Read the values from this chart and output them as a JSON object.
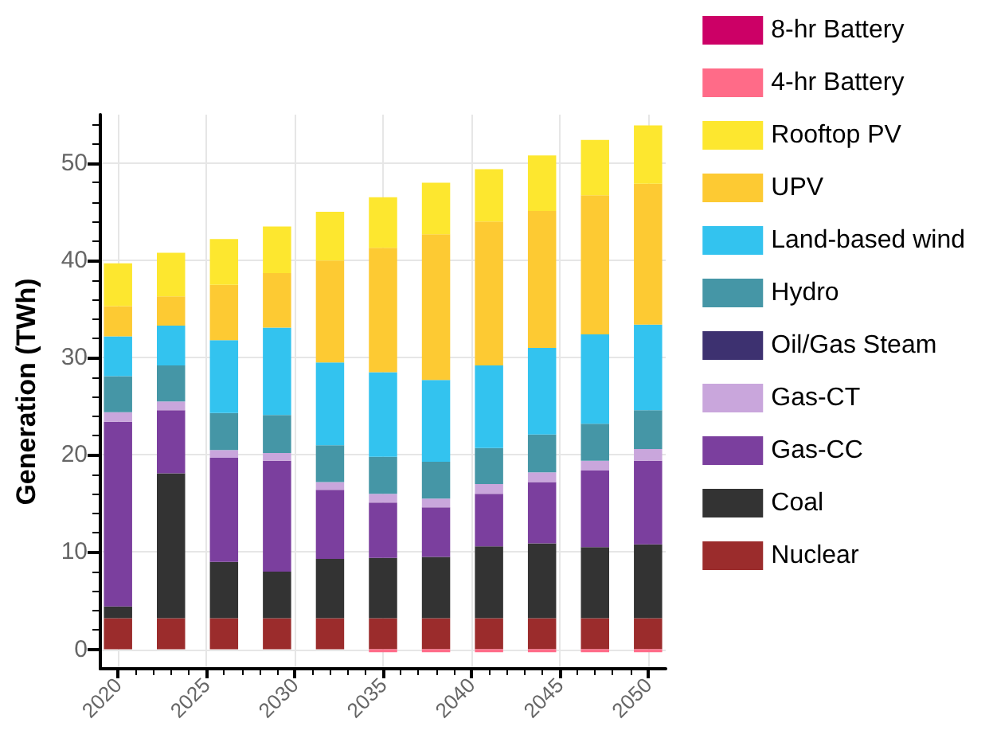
{
  "chart_data": {
    "type": "bar",
    "stacked": true,
    "ylabel": "Generation (TWh)",
    "x": [
      2020,
      2023,
      2026,
      2029,
      2032,
      2035,
      2038,
      2041,
      2044,
      2047,
      2050
    ],
    "xlim": [
      2019,
      2051
    ],
    "xticks": [
      2020,
      2025,
      2030,
      2035,
      2040,
      2045,
      2050
    ],
    "ylim": [
      -2,
      55
    ],
    "yticks": [
      0,
      10,
      20,
      30,
      40,
      50
    ],
    "grid": true,
    "legend": "right",
    "series": [
      {
        "name": "Nuclear",
        "color": "#9b2c2c",
        "values": [
          3.2,
          3.2,
          3.2,
          3.2,
          3.2,
          3.2,
          3.2,
          3.2,
          3.2,
          3.2,
          3.2
        ]
      },
      {
        "name": "Coal",
        "color": "#333333",
        "values": [
          1.2,
          14.9,
          5.8,
          4.8,
          6.1,
          6.2,
          6.3,
          7.4,
          7.7,
          7.3,
          7.6
        ]
      },
      {
        "name": "Gas-CC",
        "color": "#7b3f9e",
        "values": [
          19.0,
          6.5,
          10.7,
          11.4,
          7.1,
          5.7,
          5.1,
          5.4,
          6.3,
          7.9,
          8.6
        ]
      },
      {
        "name": "Gas-CT",
        "color": "#c9a6dc",
        "values": [
          1.0,
          0.9,
          0.8,
          0.8,
          0.8,
          0.9,
          0.9,
          1.0,
          1.0,
          1.0,
          1.2
        ]
      },
      {
        "name": "Oil/Gas Steam",
        "color": "#3d3170",
        "values": [
          0,
          0,
          0,
          0,
          0,
          0,
          0,
          0,
          0,
          0,
          0
        ]
      },
      {
        "name": "Hydro",
        "color": "#4596a6",
        "values": [
          3.7,
          3.7,
          3.8,
          3.9,
          3.8,
          3.8,
          3.8,
          3.7,
          3.9,
          3.8,
          4.0
        ]
      },
      {
        "name": "Land-based wind",
        "color": "#33c3ef",
        "values": [
          4.1,
          4.1,
          7.5,
          9.0,
          8.5,
          8.7,
          8.4,
          8.5,
          8.9,
          9.2,
          8.8
        ]
      },
      {
        "name": "UPV",
        "color": "#fdca33",
        "values": [
          3.1,
          3.0,
          5.7,
          5.6,
          10.5,
          12.8,
          15.0,
          14.8,
          14.1,
          14.3,
          14.5
        ]
      },
      {
        "name": "Rooftop PV",
        "color": "#fde72f",
        "values": [
          4.4,
          4.5,
          4.7,
          4.8,
          5.0,
          5.2,
          5.3,
          5.4,
          5.7,
          5.7,
          6.0
        ]
      },
      {
        "name": "4-hr Battery",
        "color": "#ff6b88",
        "values": [
          0,
          0,
          0,
          0,
          0,
          -0.3,
          -0.3,
          -0.3,
          -0.3,
          -0.3,
          -0.3
        ]
      },
      {
        "name": "8-hr Battery",
        "color": "#cc0066",
        "values": [
          0,
          0,
          0,
          0,
          0,
          0,
          0,
          0,
          0,
          0,
          0
        ]
      }
    ]
  }
}
